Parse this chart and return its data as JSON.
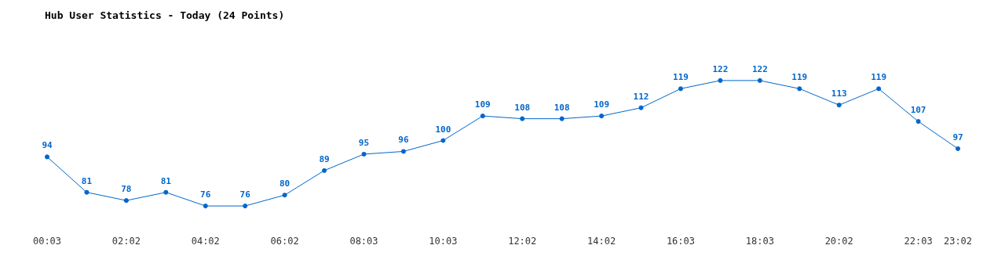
{
  "chart_data": {
    "type": "line",
    "title": "Hub User Statistics - Today (24 Points)",
    "categories": [
      "00:03",
      null,
      "02:02",
      null,
      "04:02",
      null,
      "06:02",
      null,
      "08:03",
      null,
      "10:03",
      null,
      "12:02",
      null,
      "14:02",
      null,
      "16:03",
      null,
      "18:03",
      null,
      "20:02",
      null,
      "22:03",
      "23:02"
    ],
    "series": [
      {
        "color": "#0066cc",
        "values": [
          94,
          81,
          78,
          81,
          76,
          76,
          80,
          89,
          95,
          96,
          100,
          109,
          108,
          108,
          109,
          112,
          119,
          122,
          122,
          119,
          113,
          119,
          107,
          97
        ]
      }
    ],
    "data_labels": true,
    "marker": "circle",
    "line_style": "solid",
    "grid": false,
    "tick_labels": "x"
  }
}
